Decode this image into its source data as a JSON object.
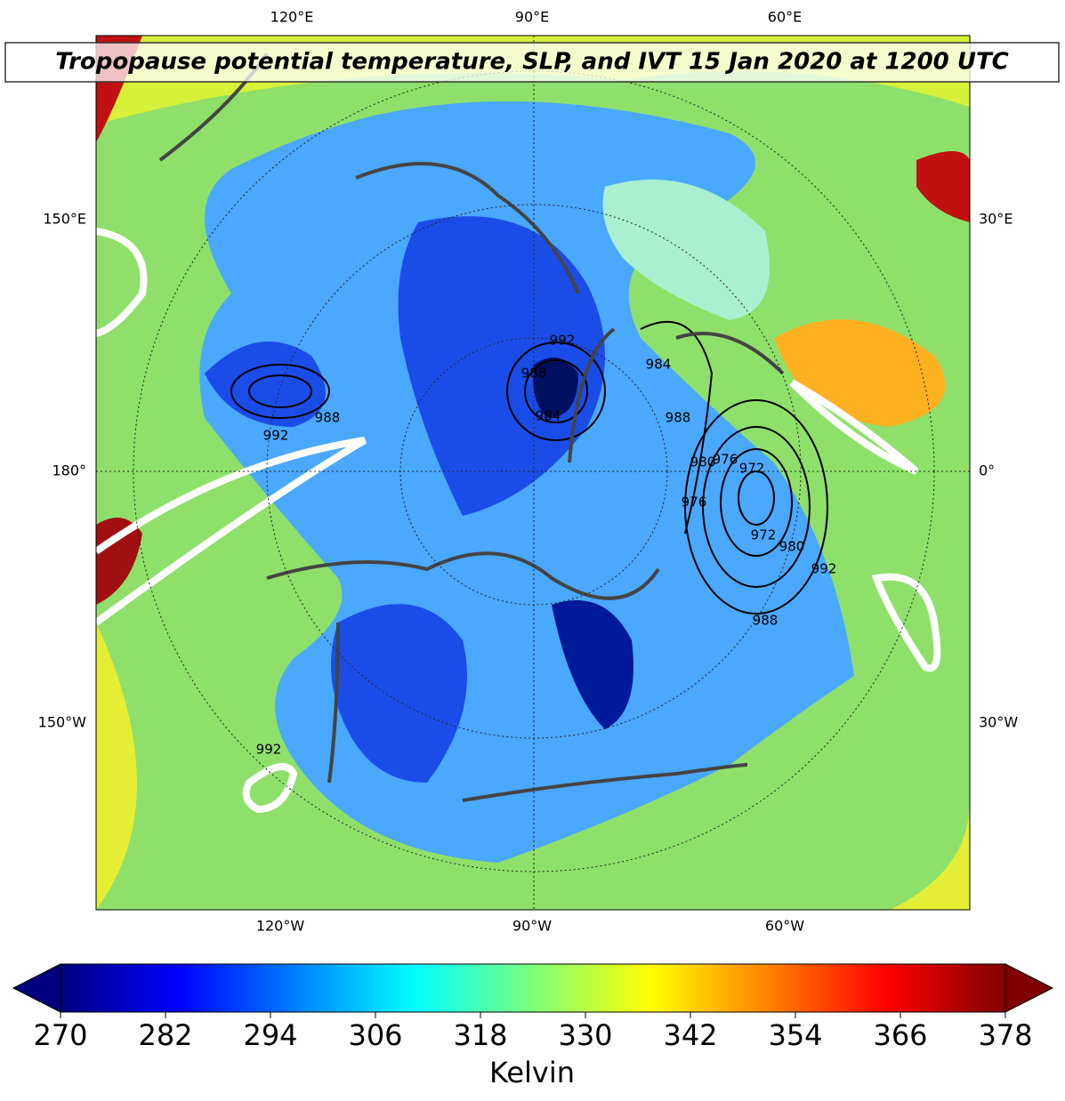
{
  "title": "Tropopause potential temperature, SLP, and IVT 15 Jan 2020 at 1200 UTC",
  "map": {
    "lon_labels_top": [
      "120°E",
      "90°E",
      "60°E"
    ],
    "lon_labels_left": [
      "150°E",
      "180°",
      "150°W"
    ],
    "lon_labels_right": [
      "30°E",
      "0°",
      "30°W"
    ],
    "lon_labels_bottom": [
      "120°W",
      "90°W",
      "60°W"
    ],
    "contour_labels": [
      992,
      988,
      992,
      988,
      984,
      984,
      988,
      980,
      976,
      972,
      976,
      972,
      980,
      992,
      988,
      992
    ]
  },
  "colorbar": {
    "type": "colorbar",
    "label": "Kelvin",
    "colormap": "jet",
    "lim": [
      270,
      378
    ],
    "ticks": [
      270,
      282,
      294,
      306,
      318,
      330,
      342,
      354,
      366,
      378
    ]
  }
}
